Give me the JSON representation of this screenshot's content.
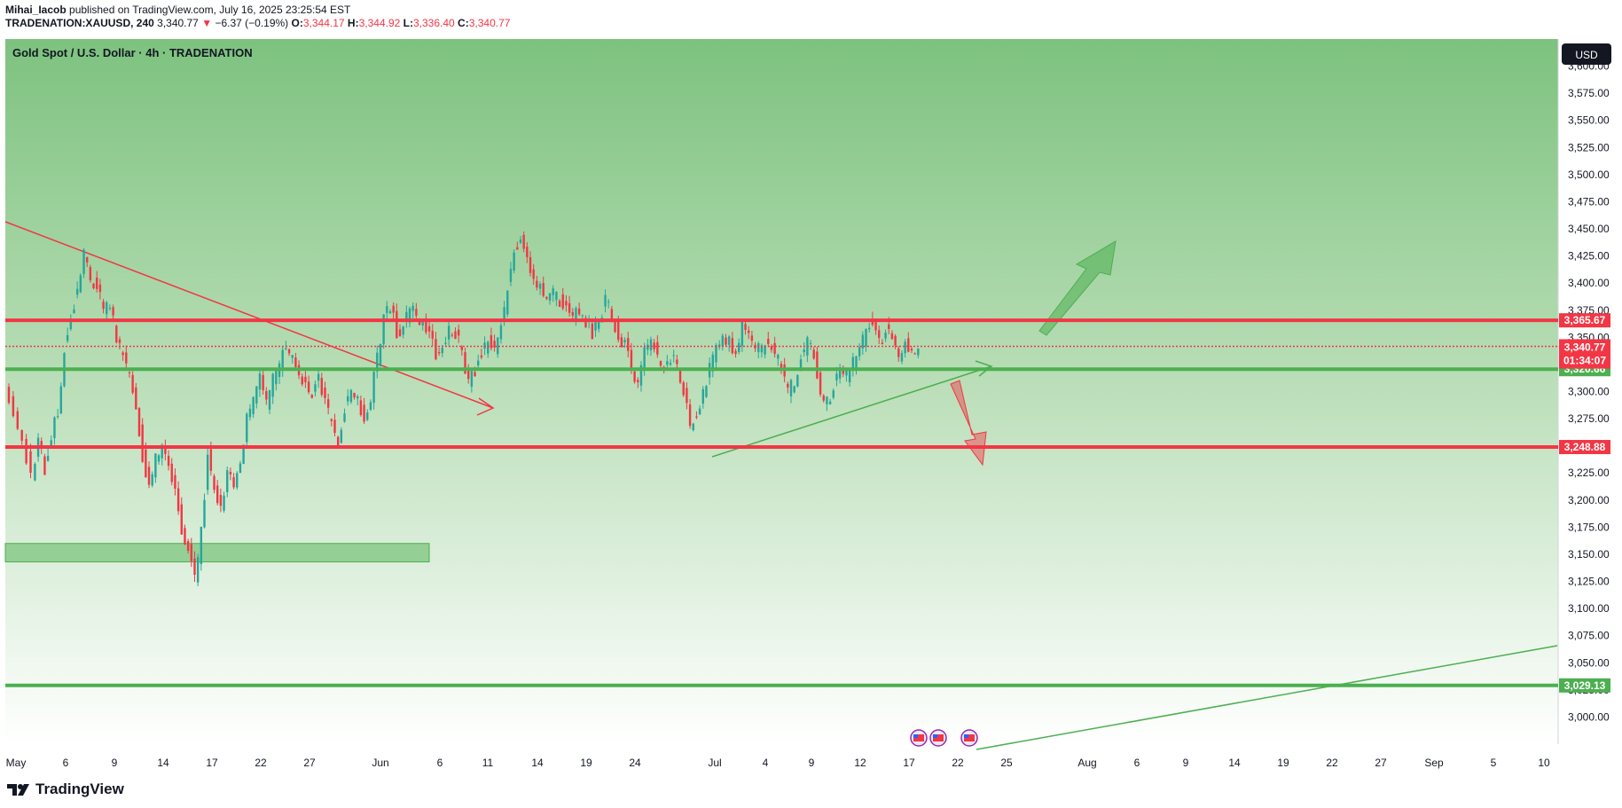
{
  "header": {
    "author": "Mihai_Iacob",
    "published": "published on TradingView.com, July 16, 2025 23:25:54 EST",
    "symbol": "TRADENATION:XAUUSD, 240",
    "last": "3,340.77",
    "change": "−6.37 (−0.19%)",
    "o_label": "O:",
    "o": "3,344.17",
    "h_label": "H:",
    "h": "3,344.92",
    "l_label": "L:",
    "l": "3,336.40",
    "c_label": "C:",
    "c": "3,340.77"
  },
  "chart_title": "Gold Spot / U.S. Dollar · 4h · TRADENATION",
  "currency": "USD",
  "footer_brand": "TradingView",
  "chart_data": {
    "type": "candlestick",
    "title": "Gold Spot / U.S. Dollar · 4h · TRADENATION",
    "ylim": [
      2975,
      3625
    ],
    "y_ticks": [
      3000,
      3025,
      3050,
      3075,
      3100,
      3125,
      3150,
      3175,
      3200,
      3225,
      3250,
      3275,
      3300,
      3325,
      3350,
      3375,
      3400,
      3425,
      3450,
      3475,
      3500,
      3525,
      3550,
      3575,
      3600
    ],
    "x_ticks": [
      "May",
      "6",
      "9",
      "14",
      "17",
      "22",
      "27",
      "Jun",
      "6",
      "11",
      "14",
      "19",
      "24",
      "Jul",
      "4",
      "9",
      "12",
      "17",
      "22",
      "25",
      "Aug",
      "6",
      "9",
      "14",
      "19",
      "22",
      "27",
      "Sep",
      "5",
      "10"
    ],
    "price_path": [
      [
        0,
        3305
      ],
      [
        2,
        3270
      ],
      [
        4,
        3222
      ],
      [
        5,
        3255
      ],
      [
        6,
        3230
      ],
      [
        7,
        3262
      ],
      [
        8,
        3280
      ],
      [
        9,
        3340
      ],
      [
        10,
        3370
      ],
      [
        11,
        3395
      ],
      [
        12,
        3430
      ],
      [
        13,
        3405
      ],
      [
        14,
        3395
      ],
      [
        15,
        3375
      ],
      [
        16,
        3380
      ],
      [
        17,
        3350
      ],
      [
        18,
        3330
      ],
      [
        19,
        3315
      ],
      [
        20,
        3290
      ],
      [
        21,
        3240
      ],
      [
        22,
        3215
      ],
      [
        23,
        3240
      ],
      [
        24,
        3245
      ],
      [
        25,
        3230
      ],
      [
        26,
        3205
      ],
      [
        27,
        3175
      ],
      [
        28,
        3155
      ],
      [
        29,
        3125
      ],
      [
        30,
        3170
      ],
      [
        31,
        3240
      ],
      [
        32,
        3210
      ],
      [
        33,
        3190
      ],
      [
        34,
        3225
      ],
      [
        35,
        3215
      ],
      [
        36,
        3240
      ],
      [
        37,
        3275
      ],
      [
        38,
        3295
      ],
      [
        39,
        3310
      ],
      [
        40,
        3290
      ],
      [
        41,
        3310
      ],
      [
        42,
        3320
      ],
      [
        43,
        3345
      ],
      [
        44,
        3330
      ],
      [
        45,
        3315
      ],
      [
        46,
        3305
      ],
      [
        47,
        3300
      ],
      [
        48,
        3310
      ],
      [
        49,
        3290
      ],
      [
        50,
        3270
      ],
      [
        51,
        3255
      ],
      [
        52,
        3285
      ],
      [
        53,
        3305
      ],
      [
        54,
        3290
      ],
      [
        55,
        3275
      ],
      [
        56,
        3295
      ],
      [
        57,
        3330
      ],
      [
        58,
        3370
      ],
      [
        59,
        3380
      ],
      [
        60,
        3355
      ],
      [
        61,
        3360
      ],
      [
        62,
        3375
      ],
      [
        63,
        3370
      ],
      [
        64,
        3365
      ],
      [
        65,
        3350
      ],
      [
        66,
        3335
      ],
      [
        67,
        3340
      ],
      [
        68,
        3355
      ],
      [
        69,
        3355
      ],
      [
        70,
        3335
      ],
      [
        71,
        3310
      ],
      [
        72,
        3320
      ],
      [
        73,
        3335
      ],
      [
        74,
        3345
      ],
      [
        75,
        3340
      ],
      [
        76,
        3360
      ],
      [
        77,
        3395
      ],
      [
        78,
        3430
      ],
      [
        79,
        3445
      ],
      [
        80,
        3420
      ],
      [
        81,
        3400
      ],
      [
        82,
        3395
      ],
      [
        83,
        3390
      ],
      [
        84,
        3390
      ],
      [
        85,
        3385
      ],
      [
        86,
        3375
      ],
      [
        87,
        3370
      ],
      [
        88,
        3375
      ],
      [
        89,
        3365
      ],
      [
        90,
        3355
      ],
      [
        91,
        3365
      ],
      [
        92,
        3385
      ],
      [
        93,
        3370
      ],
      [
        94,
        3350
      ],
      [
        95,
        3345
      ],
      [
        96,
        3320
      ],
      [
        97,
        3305
      ],
      [
        98,
        3335
      ],
      [
        99,
        3345
      ],
      [
        100,
        3335
      ],
      [
        101,
        3320
      ],
      [
        102,
        3330
      ],
      [
        103,
        3325
      ],
      [
        104,
        3300
      ],
      [
        105,
        3270
      ],
      [
        106,
        3280
      ],
      [
        107,
        3300
      ],
      [
        108,
        3320
      ],
      [
        109,
        3340
      ],
      [
        110,
        3350
      ],
      [
        111,
        3345
      ],
      [
        112,
        3335
      ],
      [
        113,
        3360
      ],
      [
        114,
        3350
      ],
      [
        115,
        3340
      ],
      [
        116,
        3340
      ],
      [
        117,
        3345
      ],
      [
        118,
        3335
      ],
      [
        119,
        3320
      ],
      [
        120,
        3300
      ],
      [
        121,
        3310
      ],
      [
        122,
        3330
      ],
      [
        123,
        3345
      ],
      [
        124,
        3335
      ],
      [
        125,
        3300
      ],
      [
        126,
        3290
      ],
      [
        127,
        3305
      ],
      [
        128,
        3320
      ],
      [
        129,
        3315
      ],
      [
        130,
        3325
      ],
      [
        131,
        3340
      ],
      [
        132,
        3355
      ],
      [
        133,
        3365
      ],
      [
        134,
        3345
      ],
      [
        135,
        3355
      ],
      [
        136,
        3355
      ],
      [
        137,
        3330
      ],
      [
        138,
        3345
      ],
      [
        139,
        3340
      ],
      [
        140,
        3341
      ]
    ],
    "levels": [
      {
        "price": 3365.67,
        "label": "3,365.67",
        "color": "#f23645",
        "style": "solid"
      },
      {
        "price": 3341.74,
        "label": "3,341.74",
        "color": "#f23645",
        "style": "dotted"
      },
      {
        "price": 3320.66,
        "label": "3,320.66",
        "color": "#4caf50",
        "style": "solid"
      },
      {
        "price": 3248.88,
        "label": "3,248.88",
        "color": "#f23645",
        "style": "solid"
      },
      {
        "price": 3029.13,
        "label": "3,029.13",
        "color": "#4caf50",
        "style": "solid"
      }
    ],
    "last_price": {
      "label": "3,340.77",
      "countdown": "01:34:07",
      "color": "#f23645"
    },
    "zone": {
      "price_top": 3160,
      "price_bottom": 3143
    },
    "colors": {
      "up": "#26a69a",
      "down": "#f23645",
      "bg_top": "#7dc27f",
      "bg_bottom": "#ffffff",
      "green_line": "#4caf50",
      "red_line": "#f23645"
    }
  }
}
